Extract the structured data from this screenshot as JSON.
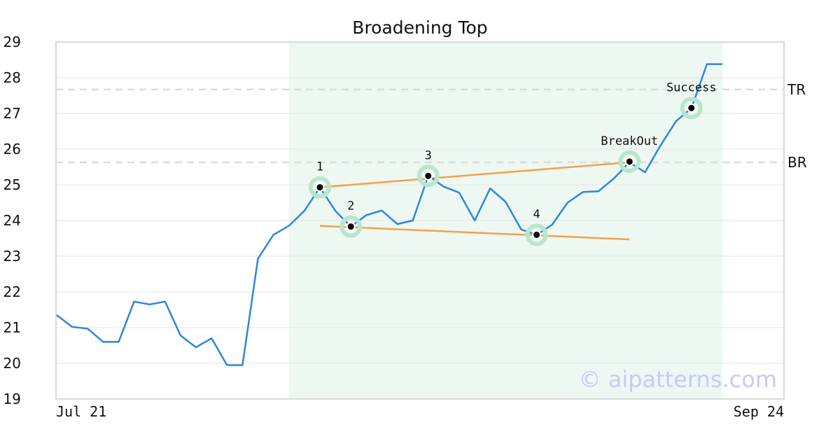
{
  "chart_data": {
    "type": "line",
    "title": "Broadening Top",
    "xlabel": "",
    "ylabel": "",
    "ylim": [
      19,
      29
    ],
    "yticks": [
      19,
      20,
      21,
      22,
      23,
      24,
      25,
      26,
      27,
      28,
      29
    ],
    "x_tick_labels": [
      "Jul 21",
      "Sep 24"
    ],
    "grid": true,
    "series": [
      {
        "color": "#2e86de",
        "x": [
          0,
          1,
          2,
          3,
          4,
          5,
          6,
          7,
          8,
          9,
          10,
          11,
          12,
          13,
          14,
          15,
          16,
          17,
          18,
          19,
          20,
          21,
          22,
          23,
          24,
          25,
          26,
          27,
          28,
          29,
          30,
          31,
          32,
          33,
          34,
          35,
          36,
          37,
          38,
          39,
          40,
          41,
          42,
          43
        ],
        "values": [
          21.35,
          21.02,
          20.97,
          20.6,
          20.6,
          21.73,
          21.65,
          21.73,
          20.78,
          20.45,
          20.7,
          19.95,
          19.95,
          22.93,
          23.6,
          23.85,
          24.27,
          24.93,
          24.27,
          23.83,
          24.15,
          24.28,
          23.9,
          24.0,
          25.25,
          24.95,
          24.78,
          24.0,
          24.9,
          24.52,
          23.75,
          23.6,
          23.88,
          24.5,
          24.8,
          24.82,
          25.18,
          25.63,
          25.35,
          26.1,
          26.78,
          27.15,
          28.38,
          28.38
        ]
      }
    ],
    "highlight_region": {
      "x_start": 15,
      "x_end": 43,
      "color": "#eef8f3"
    },
    "levels": [
      {
        "label": "TR",
        "value": 27.67
      },
      {
        "label": "BR",
        "value": 25.63
      }
    ],
    "trendlines": [
      {
        "from": [
          17,
          24.93
        ],
        "to": [
          37,
          25.63
        ],
        "color": "#f5a04a"
      },
      {
        "from": [
          17,
          23.85
        ],
        "to": [
          37,
          23.47
        ],
        "color": "#f5a04a"
      }
    ],
    "points": [
      {
        "label": "1",
        "x": 17,
        "y": 24.93
      },
      {
        "label": "2",
        "x": 19,
        "y": 23.83
      },
      {
        "label": "3",
        "x": 24,
        "y": 25.25
      },
      {
        "label": "4",
        "x": 31,
        "y": 23.6
      },
      {
        "label": "BreakOut",
        "x": 37,
        "y": 25.65
      },
      {
        "label": "Success",
        "x": 41,
        "y": 27.15
      }
    ],
    "watermark": "© aipatterns.com"
  }
}
